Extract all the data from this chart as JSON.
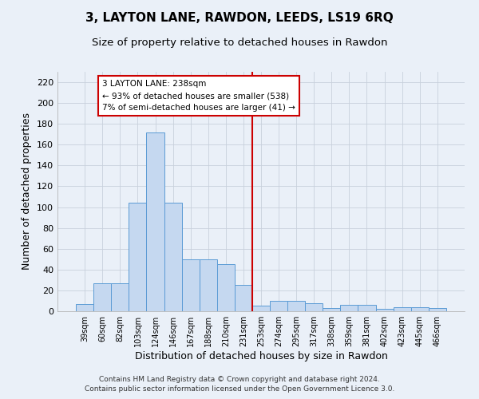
{
  "title": "3, LAYTON LANE, RAWDON, LEEDS, LS19 6RQ",
  "subtitle": "Size of property relative to detached houses in Rawdon",
  "xlabel": "Distribution of detached houses by size in Rawdon",
  "ylabel": "Number of detached properties",
  "categories": [
    "39sqm",
    "60sqm",
    "82sqm",
    "103sqm",
    "124sqm",
    "146sqm",
    "167sqm",
    "188sqm",
    "210sqm",
    "231sqm",
    "253sqm",
    "274sqm",
    "295sqm",
    "317sqm",
    "338sqm",
    "359sqm",
    "381sqm",
    "402sqm",
    "423sqm",
    "445sqm",
    "466sqm"
  ],
  "values": [
    7,
    27,
    27,
    104,
    172,
    104,
    50,
    50,
    45,
    25,
    5,
    10,
    10,
    8,
    3,
    6,
    6,
    2,
    4,
    4,
    3
  ],
  "bar_color": "#c5d8f0",
  "bar_edge_color": "#5b9bd5",
  "subject_line_color": "#cc0000",
  "annotation_line1": "3 LAYTON LANE: 238sqm",
  "annotation_line2": "← 93% of detached houses are smaller (538)",
  "annotation_line3": "7% of semi-detached houses are larger (41) →",
  "annotation_box_edge_color": "#cc0000",
  "ylim": [
    0,
    230
  ],
  "yticks": [
    0,
    20,
    40,
    60,
    80,
    100,
    120,
    140,
    160,
    180,
    200,
    220
  ],
  "footer1": "Contains HM Land Registry data © Crown copyright and database right 2024.",
  "footer2": "Contains public sector information licensed under the Open Government Licence 3.0.",
  "background_color": "#eaf0f8",
  "grid_color": "#c8d0dc",
  "title_fontsize": 11,
  "subtitle_fontsize": 9.5
}
